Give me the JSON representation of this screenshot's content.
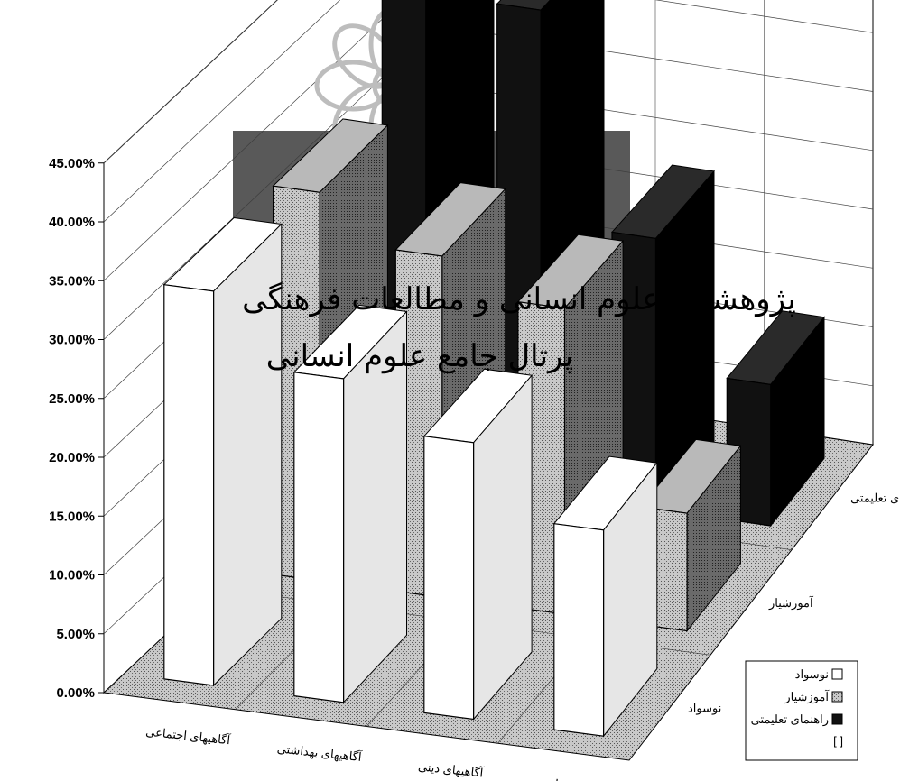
{
  "chart_data": {
    "type": "bar",
    "three_d": true,
    "title": "",
    "xlabel": "",
    "ylabel": "",
    "y_tick_labels": [
      "0.00%",
      "5.00%",
      "10.00%",
      "15.00%",
      "20.00%",
      "25.00%",
      "30.00%",
      "35.00%",
      "40.00%",
      "45.00%"
    ],
    "ylim": [
      0,
      45
    ],
    "grid": true,
    "legend_position": "bottom-right",
    "categories": [
      "آگاهیهای اجتماعی",
      "آگاهیهای بهداشتی",
      "آگاهیهای دینی",
      "سایر موضوعات"
    ],
    "series": [
      {
        "name": "راهنمای تعلیمتی",
        "values": [
          43.5,
          41.0,
          23.0,
          12.0
        ],
        "color": "#111111"
      },
      {
        "name": "آموزشیار",
        "values": [
          33.0,
          29.0,
          26.0,
          10.0
        ],
        "color": "#8c8c8c"
      },
      {
        "name": "نوسواد",
        "values": [
          33.5,
          27.5,
          23.5,
          17.5
        ],
        "color": "#ffffff"
      }
    ],
    "series_axis_labels": [
      "نوسواد",
      "آموزشیار",
      "راهنمای تعلیمتی"
    ],
    "legend": [
      {
        "label": "نوسواد",
        "swatch": "#ffffff"
      },
      {
        "label": "آموزشیار",
        "swatch": "#8c8c8c"
      },
      {
        "label": "راهنمای تعلیمتی",
        "swatch": "#111111"
      },
      {
        "label": "[ ]",
        "swatch": "none"
      }
    ]
  },
  "watermark": {
    "line1": "پژوهشگاه علوم انسانی و مطالعات فرهنگی",
    "line2": "پرتال جامع علوم انسانی"
  }
}
